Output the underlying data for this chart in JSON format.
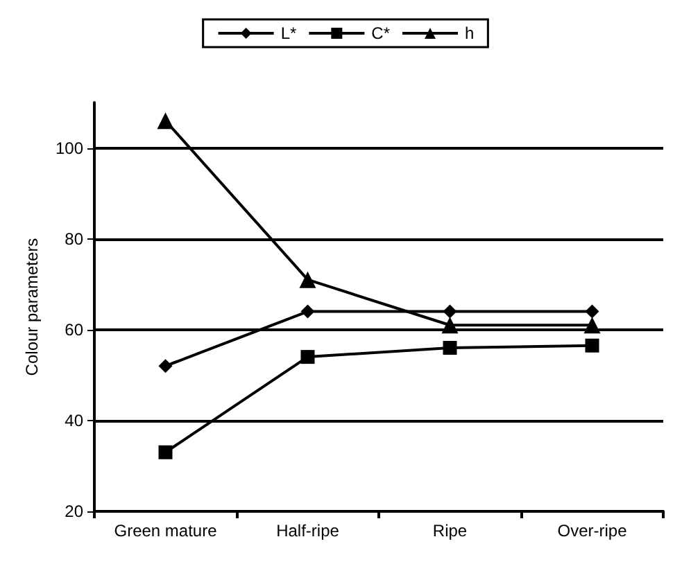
{
  "chart_data": {
    "type": "line",
    "ylabel": "Colour parameters",
    "categories": [
      "Green mature",
      "Half-ripe",
      "Ripe",
      "Over-ripe"
    ],
    "ylim": [
      20,
      110
    ],
    "yticks": [
      20,
      40,
      60,
      80,
      100
    ],
    "grid": "y",
    "legend": "top",
    "series": [
      {
        "name": "L*",
        "color": "#000000",
        "marker": "diamond",
        "values": [
          52,
          64,
          64,
          64
        ]
      },
      {
        "name": "C*",
        "color": "#000000",
        "marker": "square",
        "values": [
          33,
          54,
          56,
          56.5
        ]
      },
      {
        "name": "h",
        "color": "#000000",
        "marker": "triangle",
        "values": [
          106,
          71,
          61,
          61
        ]
      }
    ]
  }
}
